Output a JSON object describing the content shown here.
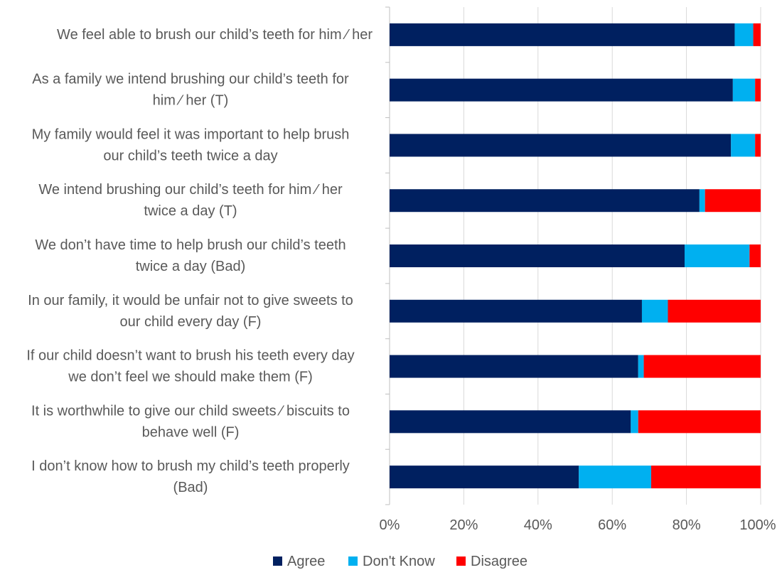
{
  "chart_data": {
    "type": "bar",
    "orientation": "horizontal",
    "stacked": true,
    "percent_stacked": true,
    "categories": [
      [
        "We feel able to brush our child’s teeth for him ⁄ her"
      ],
      [
        "As a family we intend brushing our child’s teeth for",
        "him ⁄ her (T)"
      ],
      [
        "My family would feel it was important to help brush",
        "our child’s teeth twice a day"
      ],
      [
        "We intend brushing our child’s teeth for him ⁄ her",
        "twice a day (T)"
      ],
      [
        "We don’t have time to help brush our child’s teeth",
        "twice a day (Bad)"
      ],
      [
        "In our family, it would be unfair not to give sweets to",
        "our child every day (F)"
      ],
      [
        "If our child doesn’t want to brush his teeth every day",
        "we don’t feel we should make them (F)"
      ],
      [
        "It is worthwhile to give our child sweets ⁄ biscuits to",
        "behave well (F)"
      ],
      [
        "I don’t know how to brush my child’s teeth properly",
        "(Bad)"
      ]
    ],
    "series": [
      {
        "name": "Agree",
        "color": "#002060",
        "values": [
          93,
          92.5,
          92,
          83.5,
          79.5,
          68,
          67,
          65,
          51
        ]
      },
      {
        "name": "Don't Know",
        "color": "#00B0F0",
        "values": [
          5,
          6,
          6.5,
          1.5,
          17.5,
          7,
          1.5,
          2,
          19.5
        ]
      },
      {
        "name": "Disagree",
        "color": "#FF0000",
        "values": [
          2,
          1.5,
          1.5,
          15,
          3,
          25,
          31.5,
          33,
          29.5
        ]
      }
    ],
    "xlim": [
      0,
      100
    ],
    "x_ticks": [
      "0%",
      "20%",
      "40%",
      "60%",
      "80%",
      "100%"
    ],
    "grid": true,
    "legend_position": "bottom"
  }
}
